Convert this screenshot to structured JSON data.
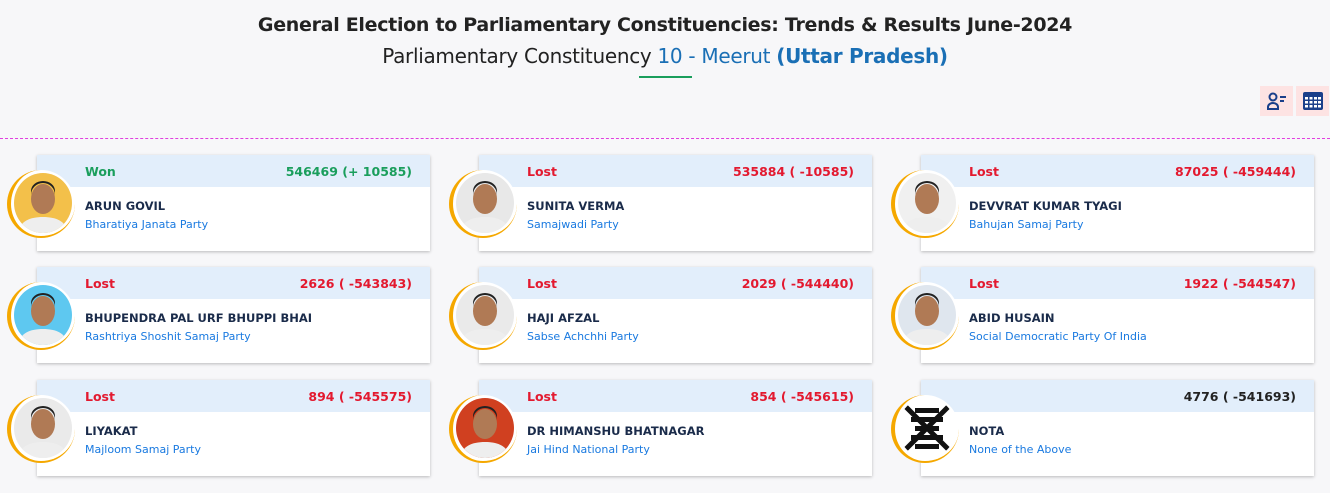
{
  "header": {
    "title": "General Election to Parliamentary Constituencies: Trends & Results June-2024",
    "subtitle_prefix": "Parliamentary Constituency",
    "constituency": "10 - Meerut",
    "state": "(Uttar Pradesh)"
  },
  "toolbar": {
    "icons": [
      "candidate-list-icon",
      "table-icon"
    ]
  },
  "colors": {
    "won": "#1a9e5c",
    "lost": "#e3192f",
    "accent": "#1a6fb5",
    "header_band": "#e2eefb"
  },
  "candidates": [
    {
      "status": "Won",
      "votes": "546469 (+ 10585)",
      "name": "ARUN GOVIL",
      "party": "Bharatiya Janata Party",
      "bg": "#f3c04a"
    },
    {
      "status": "Lost",
      "votes": "535884 ( -10585)",
      "name": "SUNITA VERMA",
      "party": "Samajwadi Party",
      "bg": "#e8e8e8"
    },
    {
      "status": "Lost",
      "votes": "87025 ( -459444)",
      "name": "DEVVRAT KUMAR TYAGI",
      "party": "Bahujan Samaj Party",
      "bg": "#f0f0f0"
    },
    {
      "status": "Lost",
      "votes": "2626 ( -543843)",
      "name": "BHUPENDRA PAL URF BHUPPI BHAI",
      "party": "Rashtriya Shoshit Samaj Party",
      "bg": "#5ec8f0"
    },
    {
      "status": "Lost",
      "votes": "2029 ( -544440)",
      "name": "HAJI AFZAL",
      "party": "Sabse Achchhi Party",
      "bg": "#eaeaea"
    },
    {
      "status": "Lost",
      "votes": "1922 ( -544547)",
      "name": "ABID HUSAIN",
      "party": "Social Democratic Party Of India",
      "bg": "#dfe6ee"
    },
    {
      "status": "Lost",
      "votes": "894 ( -545575)",
      "name": "LIYAKAT",
      "party": "Majloom Samaj Party",
      "bg": "#eaeaea"
    },
    {
      "status": "Lost",
      "votes": "854 ( -545615)",
      "name": "DR HIMANSHU BHATNAGAR",
      "party": "Jai Hind National Party",
      "bg": "#d04020"
    },
    {
      "status": "",
      "votes": "4776 ( -541693)",
      "name": "NOTA",
      "party": "None of the Above",
      "bg": "#ffffff"
    }
  ]
}
